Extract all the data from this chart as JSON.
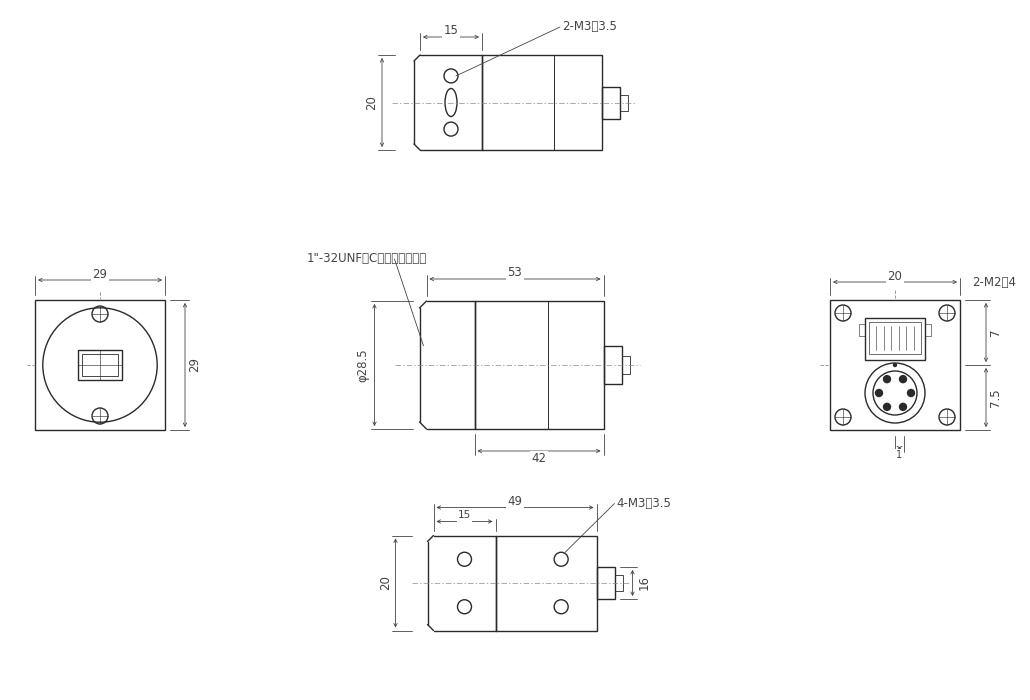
{
  "bg_color": "#ffffff",
  "lc": "#2a2a2a",
  "dc": "#444444",
  "dash_color": "#888888",
  "top_view": {
    "note": "2-M3深3.5",
    "dim_15": "15",
    "dim_20": "20"
  },
  "front_view": {
    "dim_29w": "29",
    "dim_29h": "29"
  },
  "side_view": {
    "dim_53": "53",
    "dim_42": "42",
    "dim_28_5": "φ28.5",
    "note": "1\"-32UNF（Cマウントネジ）"
  },
  "back_view": {
    "dim_20": "20",
    "dim_7": "7",
    "dim_7_5": "7.5",
    "dim_1": "1",
    "note": "2-M2深4"
  },
  "bottom_view": {
    "dim_49": "49",
    "dim_15": "15",
    "dim_20": "20",
    "dim_16": "16",
    "note": "4-M3深3.5"
  }
}
